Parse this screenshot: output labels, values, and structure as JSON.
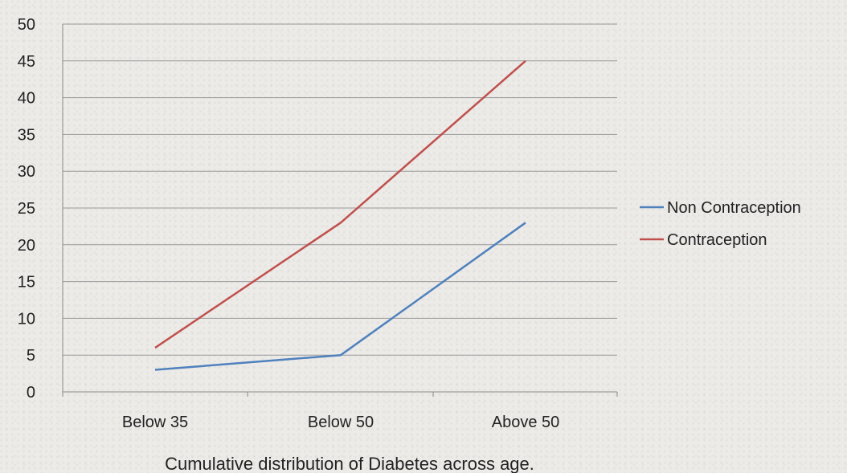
{
  "chart_data": {
    "type": "line",
    "categories": [
      "Below 35",
      "Below 50",
      "Above 50"
    ],
    "series": [
      {
        "name": "Non Contraception",
        "values": [
          3,
          5,
          23
        ],
        "color": "#4f81bd"
      },
      {
        "name": "Contraception",
        "values": [
          6,
          23,
          45
        ],
        "color": "#c0504d"
      }
    ],
    "y_ticks": [
      "0",
      "5",
      "10",
      "15",
      "20",
      "25",
      "30",
      "35",
      "40",
      "45",
      "50"
    ],
    "ylim": [
      0,
      50
    ],
    "grid": true,
    "legend_position": "right",
    "title": "",
    "xlabel": "Cumulative distribution of  Diabetes  across  age.",
    "ylabel": ""
  }
}
